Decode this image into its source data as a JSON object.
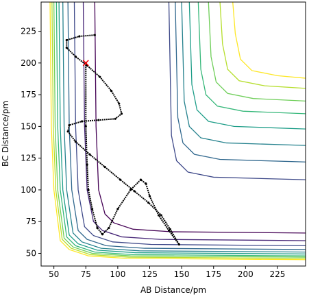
{
  "chart_data": {
    "type": "contour",
    "x_label": "AB Distance/pm",
    "y_label": "BC Distance/pm",
    "xlim": [
      40,
      247
    ],
    "ylim": [
      40,
      248
    ],
    "xticks": [
      50,
      75,
      100,
      125,
      150,
      175,
      200,
      225
    ],
    "yticks": [
      50,
      75,
      100,
      125,
      150,
      175,
      200,
      225
    ],
    "contours": [
      {
        "color": "#fde725",
        "x": [
          47,
          48,
          50,
          55,
          62,
          77,
          107,
          247
        ],
        "y": [
          248,
          150,
          100,
          60,
          53,
          48,
          46,
          45
        ]
      },
      {
        "color": "#b5de2b",
        "x": [
          48.5,
          49.5,
          51.5,
          56.5,
          63.5,
          78.5,
          108.5,
          247
        ],
        "y": [
          248,
          150,
          100,
          61,
          54,
          49,
          47,
          46
        ]
      },
      {
        "color": "#6ece58",
        "x": [
          50,
          51,
          53,
          58,
          65,
          80,
          110,
          247
        ],
        "y": [
          248,
          150,
          100,
          62,
          55,
          50,
          48,
          47
        ]
      },
      {
        "color": "#35b779",
        "x": [
          52,
          53,
          55,
          60,
          67,
          82,
          112,
          247
        ],
        "y": [
          248,
          150,
          100,
          63,
          56,
          51,
          49,
          48
        ]
      },
      {
        "color": "#1f9e89",
        "x": [
          54,
          55,
          57,
          62,
          69,
          84,
          114,
          247
        ],
        "y": [
          248,
          150,
          100,
          64.5,
          57.5,
          52.5,
          50.5,
          49.5
        ]
      },
      {
        "color": "#26828e",
        "x": [
          57,
          58,
          60,
          65,
          72,
          87,
          117,
          247
        ],
        "y": [
          248,
          150,
          100,
          66,
          59,
          54,
          52,
          51
        ]
      },
      {
        "color": "#31688e",
        "x": [
          61,
          62,
          64,
          69,
          76,
          91,
          121,
          247
        ],
        "y": [
          248,
          150,
          100,
          68,
          61,
          56,
          54,
          53
        ]
      },
      {
        "color": "#3e4989",
        "x": [
          66,
          67,
          69,
          74,
          81,
          96,
          126,
          247
        ],
        "y": [
          248,
          150,
          100,
          71,
          64,
          59,
          57,
          56
        ]
      },
      {
        "color": "#482878",
        "x": [
          73,
          74,
          76,
          81,
          88,
          103,
          133,
          247
        ],
        "y": [
          248,
          150,
          100,
          75,
          68,
          63,
          61,
          60
        ]
      },
      {
        "color": "#440154",
        "x": [
          82,
          83,
          85,
          90,
          97,
          112,
          142,
          247
        ],
        "y": [
          248,
          150,
          100,
          81,
          74,
          69,
          67,
          66
        ]
      },
      {
        "color": "#fde725",
        "x": [
          190,
          192,
          196,
          205,
          225,
          247
        ],
        "y": [
          248,
          223,
          203,
          194,
          190,
          188
        ]
      },
      {
        "color": "#b5de2b",
        "x": [
          180,
          182,
          186,
          195,
          215,
          247
        ],
        "y": [
          248,
          215,
          195,
          186,
          182,
          180
        ]
      },
      {
        "color": "#6ece58",
        "x": [
          171,
          173,
          177,
          186,
          206,
          247
        ],
        "y": [
          248,
          205,
          185,
          176,
          172,
          170
        ]
      },
      {
        "color": "#35b779",
        "x": [
          163,
          165,
          169,
          178,
          198,
          247
        ],
        "y": [
          248,
          195,
          175,
          166,
          162,
          160
        ]
      },
      {
        "color": "#1f9e89",
        "x": [
          156,
          158,
          162,
          171,
          191,
          247
        ],
        "y": [
          248,
          183,
          163,
          154,
          150,
          148
        ]
      },
      {
        "color": "#26828e",
        "x": [
          150,
          152,
          156,
          165,
          185,
          247
        ],
        "y": [
          248,
          170,
          150,
          141,
          137,
          135
        ]
      },
      {
        "color": "#31688e",
        "x": [
          145,
          147,
          151,
          160,
          180,
          247
        ],
        "y": [
          248,
          157,
          137,
          128,
          124,
          122
        ]
      },
      {
        "color": "#3e4989",
        "x": [
          140,
          142,
          146,
          155,
          175,
          247
        ],
        "y": [
          248,
          143,
          123,
          114,
          110,
          108
        ]
      }
    ],
    "trajectory": {
      "color": "#000000",
      "x": [
        82,
        70,
        60,
        60,
        67,
        76,
        86,
        95,
        101,
        103,
        98,
        85,
        72,
        62,
        61,
        67,
        78,
        90,
        102,
        113,
        124,
        134,
        141,
        148,
        140,
        132,
        125,
        122,
        118,
        110,
        100,
        93,
        88,
        84,
        80,
        77,
        76,
        75,
        75
      ],
      "y": [
        222,
        221,
        218,
        212,
        205,
        198,
        189,
        178,
        168,
        160,
        156,
        155,
        154,
        151,
        146,
        138,
        128,
        118,
        108,
        99,
        90,
        80,
        69,
        57,
        68,
        80,
        95,
        105,
        108,
        100,
        85,
        70,
        65,
        70,
        85,
        100,
        120,
        150,
        200
      ]
    },
    "marker": {
      "x": 75,
      "y": 200,
      "color": "#ff0000"
    }
  }
}
